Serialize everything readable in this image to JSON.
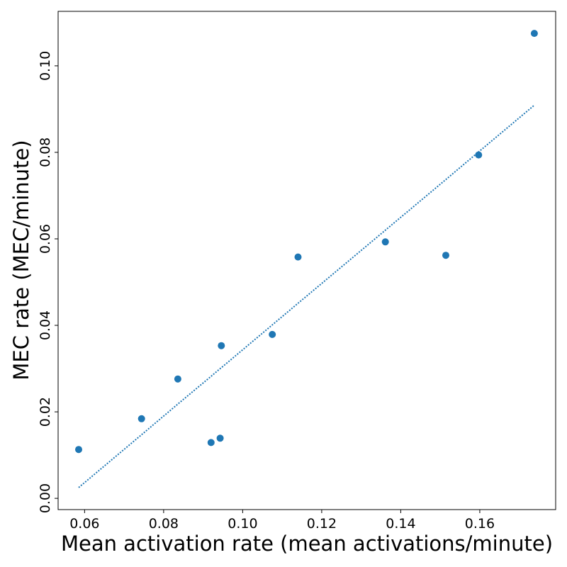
{
  "chart_data": {
    "type": "scatter",
    "title": "",
    "xlabel": "Mean activation rate (mean activations/minute)",
    "ylabel": "MEC rate (MEC/minute)",
    "xlim": [
      0.0533,
      0.1792
    ],
    "ylim": [
      -0.0026,
      0.1126
    ],
    "x_ticks": [
      0.06,
      0.08,
      0.1,
      0.12,
      0.14,
      0.16
    ],
    "x_tick_labels": [
      "0.06",
      "0.08",
      "0.10",
      "0.12",
      "0.14",
      "0.16"
    ],
    "y_ticks": [
      0.0,
      0.02,
      0.04,
      0.06,
      0.08,
      0.1
    ],
    "y_tick_labels": [
      "0.00",
      "0.02",
      "0.04",
      "0.06",
      "0.08",
      "0.10"
    ],
    "grid": false,
    "series": [
      {
        "type": "scatter",
        "color": "#1f77b4",
        "points": [
          {
            "x": 0.0585,
            "y": 0.0113
          },
          {
            "x": 0.0744,
            "y": 0.0184
          },
          {
            "x": 0.0836,
            "y": 0.0276
          },
          {
            "x": 0.092,
            "y": 0.0129
          },
          {
            "x": 0.0943,
            "y": 0.0139
          },
          {
            "x": 0.0946,
            "y": 0.0353
          },
          {
            "x": 0.1075,
            "y": 0.0379
          },
          {
            "x": 0.114,
            "y": 0.0558
          },
          {
            "x": 0.1361,
            "y": 0.0593
          },
          {
            "x": 0.1514,
            "y": 0.0562
          },
          {
            "x": 0.1597,
            "y": 0.0794
          },
          {
            "x": 0.1738,
            "y": 0.1075
          }
        ]
      },
      {
        "type": "line",
        "style": "dotted",
        "color": "#1f77b4",
        "points": [
          {
            "x": 0.0585,
            "y": 0.0025
          },
          {
            "x": 0.0744,
            "y": 0.0147
          },
          {
            "x": 0.0836,
            "y": 0.0218
          },
          {
            "x": 0.092,
            "y": 0.0282
          },
          {
            "x": 0.0943,
            "y": 0.03
          },
          {
            "x": 0.0946,
            "y": 0.0302
          },
          {
            "x": 0.1075,
            "y": 0.0401
          },
          {
            "x": 0.114,
            "y": 0.0451
          },
          {
            "x": 0.1361,
            "y": 0.062
          },
          {
            "x": 0.1514,
            "y": 0.0737
          },
          {
            "x": 0.1597,
            "y": 0.0801
          },
          {
            "x": 0.1738,
            "y": 0.0909
          }
        ]
      }
    ]
  }
}
